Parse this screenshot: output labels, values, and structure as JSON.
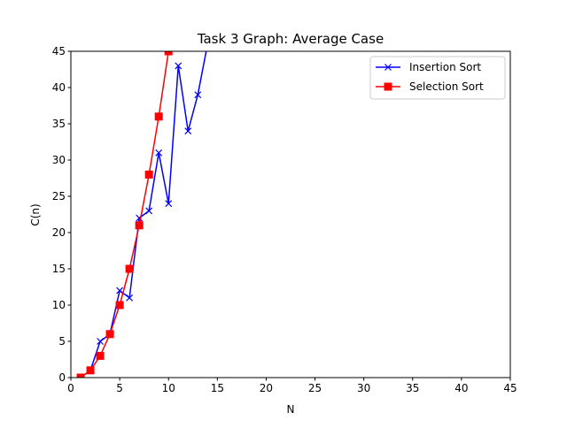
{
  "chart_data": {
    "type": "line",
    "title": "Task 3 Graph: Average Case",
    "xlabel": "N",
    "ylabel": "C(n)",
    "xlim": [
      0,
      45
    ],
    "ylim": [
      0,
      45
    ],
    "xticks": [
      0,
      5,
      10,
      15,
      20,
      25,
      30,
      35,
      40,
      45
    ],
    "yticks": [
      0,
      5,
      10,
      15,
      20,
      25,
      30,
      35,
      40,
      45
    ],
    "grid": false,
    "legend_position": "top-right",
    "series": [
      {
        "name": "Insertion Sort",
        "color": "#0000ff",
        "marker": "x",
        "x": [
          1,
          2,
          3,
          4,
          5,
          6,
          7,
          8,
          9,
          10,
          11,
          12,
          13,
          14
        ],
        "y": [
          0,
          1,
          5,
          6,
          12,
          11,
          22,
          23,
          31,
          24,
          43,
          34,
          39,
          46
        ]
      },
      {
        "name": "Selection Sort",
        "color": "#ff0000",
        "marker": "square",
        "x": [
          1,
          2,
          3,
          4,
          5,
          6,
          7,
          8,
          9,
          10
        ],
        "y": [
          0,
          1,
          3,
          6,
          10,
          15,
          21,
          28,
          36,
          45
        ]
      }
    ]
  }
}
